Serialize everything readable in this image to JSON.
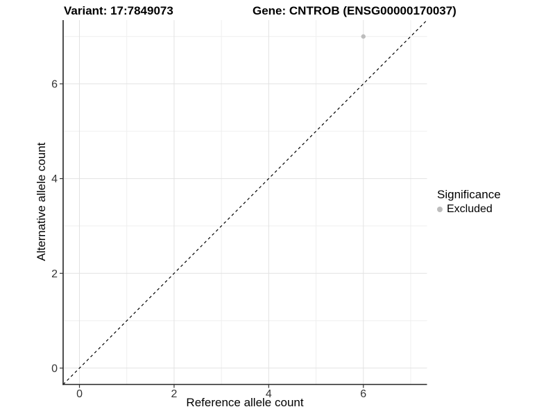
{
  "header": {
    "variant_title": "Variant: 17:7849073",
    "gene_title": "Gene: CNTROB (ENSG00000170037)"
  },
  "chart_data": {
    "type": "scatter",
    "xlabel": "Reference allele count",
    "ylabel": "Alternative allele count",
    "xlim": [
      -0.345,
      7.345
    ],
    "ylim": [
      -0.345,
      7.345
    ],
    "xticks_major": [
      0,
      2,
      4,
      6
    ],
    "yticks_major": [
      0,
      2,
      4,
      6
    ],
    "xticks_minor": [
      1,
      3,
      5,
      7
    ],
    "yticks_minor": [
      1,
      3,
      5,
      7
    ],
    "grid": true,
    "points": [
      {
        "x": 6,
        "y": 7,
        "significance": "Excluded",
        "color": "#bdbdbd"
      }
    ],
    "reference_line": {
      "type": "identity",
      "style": "dashed",
      "color": "#000000"
    },
    "legend": {
      "position": "right",
      "title": "Significance",
      "entries": [
        {
          "label": "Excluded",
          "color": "#bdbdbd"
        }
      ]
    },
    "colors": {
      "background": "#ffffff",
      "grid_major": "#e2e2e2",
      "grid_minor": "#efefef",
      "axis_line": "#222222",
      "tick_mark": "#333333",
      "tick_label": "#333333"
    }
  }
}
